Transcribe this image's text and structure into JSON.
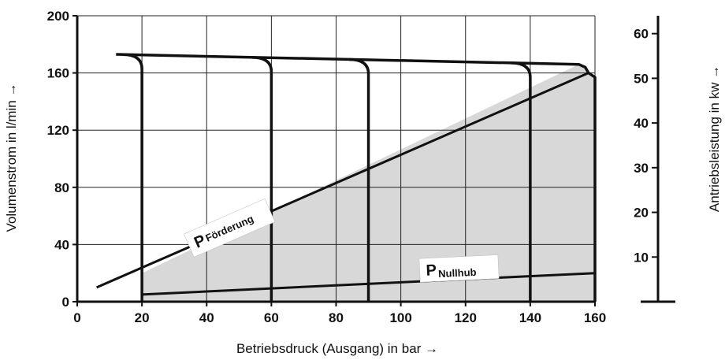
{
  "chart_data": {
    "type": "line",
    "xlabel": "Betriebsdruck (Ausgang) in bar →",
    "ylabel": "Volumenstrom in l/min →",
    "y2label": "Antriebsleistung in kw →",
    "xlim": [
      0,
      160
    ],
    "ylim": [
      0,
      200
    ],
    "y2lim": [
      0,
      64
    ],
    "x_ticks": [
      0,
      20,
      40,
      60,
      80,
      100,
      120,
      140,
      160
    ],
    "y_ticks": [
      0,
      40,
      80,
      120,
      160,
      200
    ],
    "y2_ticks": [
      10,
      20,
      30,
      40,
      50,
      60
    ],
    "grid": true,
    "flow_envelope": [
      [
        12,
        173
      ],
      [
        155,
        166
      ],
      [
        157,
        164
      ],
      [
        158,
        160
      ],
      [
        160,
        157
      ]
    ],
    "pressure_cutoffs": [
      {
        "x": [
          20,
          173
        ],
        "y": [
          20,
          0
        ]
      },
      {
        "x": [
          60,
          170
        ],
        "y": [
          60,
          0
        ]
      },
      {
        "x": [
          90,
          169
        ],
        "y": [
          90,
          0
        ]
      },
      {
        "x": [
          140,
          167
        ],
        "y": [
          140,
          0
        ]
      },
      {
        "x": [
          160,
          163
        ],
        "y": [
          160,
          0
        ]
      }
    ],
    "series": [
      {
        "name": "P Förderung",
        "label_main": "P",
        "label_sub": "Förderung",
        "x": [
          6,
          158
        ],
        "y": [
          10,
          160
        ]
      },
      {
        "name": "P Nullhub",
        "label_main": "P",
        "label_sub": "Nullhub",
        "x": [
          20,
          160
        ],
        "y": [
          5,
          20
        ]
      }
    ],
    "fill_color": "#d8d8d8",
    "line_color": "#111111"
  }
}
